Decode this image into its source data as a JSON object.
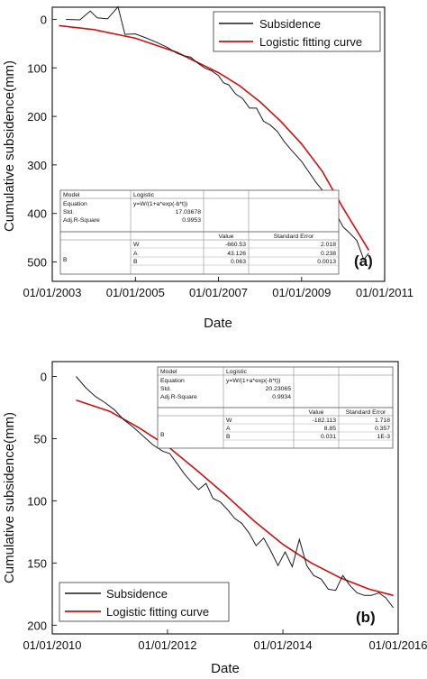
{
  "charts": [
    {
      "panel_label": "(a)",
      "ylabel": "Cumulative subsidence(mm)",
      "xlabel": "Date",
      "legend": [
        "Subsidence",
        "Logistic fitting curve"
      ],
      "stats_table": {
        "header": [
          "Model",
          "Logistic",
          "",
          ""
        ],
        "equation_row": [
          "Equation",
          "y=W/(1+a*exp(-b*t))"
        ],
        "std_row": [
          "Std.",
          "17.03678"
        ],
        "adjr_row": [
          "Adj.R-Square",
          "0.9953"
        ],
        "param_header": [
          "",
          "",
          "Value",
          "Standard Error"
        ],
        "group_label": "B",
        "params": [
          [
            "W",
            "-660.53",
            "2.018"
          ],
          [
            "A",
            "43.126",
            "0.238"
          ],
          [
            "B",
            "0.063",
            "0.0013"
          ]
        ]
      }
    },
    {
      "panel_label": "(b)",
      "ylabel": "Cumulative subsidence(mm)",
      "xlabel": "Date",
      "legend": [
        "Subsidence",
        "Logistic fitting curve"
      ],
      "stats_table": {
        "header": [
          "Model",
          "Logistic",
          "",
          ""
        ],
        "equation_row": [
          "Equation",
          "y=W/(1+a*exp(-b*t))"
        ],
        "std_row": [
          "Std.",
          "20.23065"
        ],
        "adjr_row": [
          "Adj.R-Square",
          "0.9934"
        ],
        "param_header": [
          "",
          "",
          "Value",
          "Standard Error"
        ],
        "group_label": "B",
        "params": [
          [
            "W",
            "-182.113",
            "1.718"
          ],
          [
            "A",
            "8.85",
            "0.357"
          ],
          [
            "B",
            "0.031",
            "1E-3"
          ]
        ]
      }
    }
  ],
  "chart_data": [
    {
      "type": "line",
      "title": "",
      "xlabel": "Date",
      "ylabel": "Cumulative subsidence(mm)",
      "x_axis": "date",
      "xlim": [
        "2003-01-01",
        "2011-01-01"
      ],
      "ylim": [
        540,
        -25
      ],
      "y_inverted": true,
      "x_ticks": [
        "01/01/2003",
        "01/01/2005",
        "01/01/2007",
        "01/01/2009",
        "01/01/2011"
      ],
      "y_ticks": [
        0,
        100,
        200,
        300,
        400,
        500
      ],
      "legend_position": "top-right",
      "series": [
        {
          "name": "Subsidence",
          "color": "#1a1a1a",
          "x": [
            "2003-05-01",
            "2003-09-01",
            "2003-12-01",
            "2004-02-01",
            "2004-05-01",
            "2004-08-01",
            "2004-10-01",
            "2005-01-01",
            "2005-04-01",
            "2005-07-01",
            "2005-10-01",
            "2006-01-01",
            "2006-03-01",
            "2006-05-01",
            "2006-07-01",
            "2006-09-01",
            "2006-11-01",
            "2007-01-01",
            "2007-02-15",
            "2007-04-01",
            "2007-06-01",
            "2007-08-01",
            "2007-10-01",
            "2007-12-01",
            "2008-02-01",
            "2008-04-01",
            "2008-06-01",
            "2008-08-01",
            "2008-10-01",
            "2009-01-01",
            "2009-03-01",
            "2009-05-01",
            "2009-07-01",
            "2009-09-01",
            "2009-11-01",
            "2010-01-01",
            "2010-03-01",
            "2010-05-01",
            "2010-07-01",
            "2010-08-15"
          ],
          "y": [
            0,
            1,
            -17,
            -3,
            -1,
            -26,
            31,
            30,
            38,
            47,
            57,
            70,
            75,
            78,
            90,
            100,
            106,
            116,
            131,
            135,
            154,
            163,
            183,
            183,
            210,
            218,
            231,
            252,
            269,
            293,
            313,
            334,
            352,
            378,
            401,
            428,
            441,
            456,
            495,
            482
          ]
        },
        {
          "name": "Logistic fitting curve",
          "color": "#cc1111",
          "x": [
            "2003-03-01",
            "2004-01-01",
            "2005-01-01",
            "2006-01-01",
            "2007-01-01",
            "2007-07-01",
            "2008-01-01",
            "2008-07-01",
            "2009-01-01",
            "2009-07-01",
            "2010-01-01",
            "2010-08-15"
          ],
          "y": [
            13,
            21,
            39,
            68,
            110,
            136,
            170,
            210,
            257,
            313,
            389,
            476
          ]
        }
      ]
    },
    {
      "type": "line",
      "title": "",
      "xlabel": "Date",
      "ylabel": "Cumulative subsidence(mm)",
      "x_axis": "date",
      "xlim": [
        "2010-01-01",
        "2016-01-01"
      ],
      "ylim": [
        207,
        -12
      ],
      "y_inverted": true,
      "x_ticks": [
        "01/01/2010",
        "01/01/2012",
        "01/01/2014",
        "01/01/2016"
      ],
      "y_ticks": [
        0,
        50,
        100,
        150,
        200
      ],
      "legend_position": "bottom-left",
      "series": [
        {
          "name": "Subsidence",
          "color": "#1a1a1a",
          "x": [
            "2010-06-01",
            "2010-08-01",
            "2010-10-01",
            "2010-12-01",
            "2011-02-01",
            "2011-04-01",
            "2011-06-01",
            "2011-08-01",
            "2011-10-01",
            "2011-12-01",
            "2012-01-15",
            "2012-03-01",
            "2012-04-15",
            "2012-06-01",
            "2012-07-15",
            "2012-09-01",
            "2012-10-15",
            "2012-12-01",
            "2013-01-15",
            "2013-03-01",
            "2013-04-15",
            "2013-06-01",
            "2013-07-15",
            "2013-09-01",
            "2013-10-15",
            "2013-12-01",
            "2014-01-15",
            "2014-03-01",
            "2014-04-15",
            "2014-06-01",
            "2014-07-15",
            "2014-09-01",
            "2014-10-15",
            "2014-12-01",
            "2015-01-15",
            "2015-03-01",
            "2015-04-15",
            "2015-06-01",
            "2015-07-15",
            "2015-09-01",
            "2015-10-15",
            "2015-12-01"
          ],
          "y": [
            0,
            9,
            16,
            21,
            27,
            35,
            41,
            48,
            55,
            60,
            62,
            70,
            78,
            85,
            91,
            86,
            98,
            101,
            107,
            114,
            118,
            126,
            136,
            130,
            140,
            152,
            141,
            153,
            131,
            152,
            160,
            163,
            171,
            172,
            160,
            168,
            174,
            176,
            176,
            174,
            178,
            186
          ]
        },
        {
          "name": "Logistic fitting curve",
          "color": "#cc1111",
          "x": [
            "2010-06-01",
            "2011-01-01",
            "2011-07-01",
            "2012-01-01",
            "2012-07-01",
            "2013-01-01",
            "2013-07-01",
            "2014-01-01",
            "2014-07-01",
            "2015-01-01",
            "2015-07-01",
            "2015-12-01"
          ],
          "y": [
            19,
            28,
            41,
            56,
            75,
            95,
            116,
            135,
            150,
            162,
            171,
            176
          ]
        }
      ]
    }
  ]
}
